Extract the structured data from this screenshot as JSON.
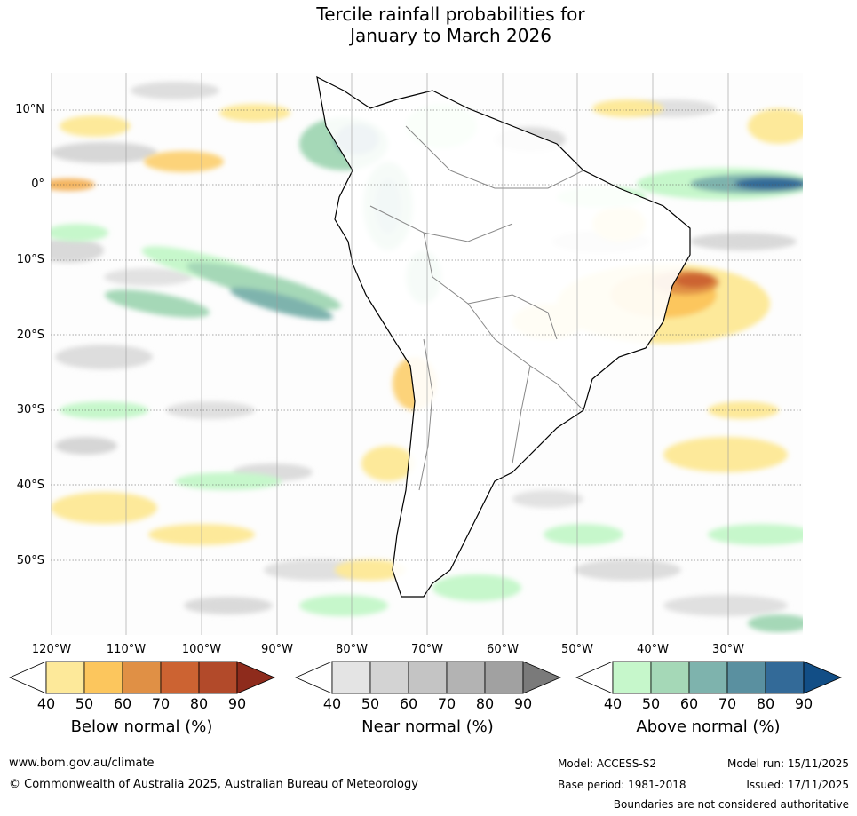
{
  "title_line1": "Tercile rainfall probabilities for",
  "title_line2": "January to March 2026",
  "lat_labels": [
    "10°N",
    "0°",
    "10°S",
    "20°S",
    "30°S",
    "40°S",
    "50°S"
  ],
  "lon_labels": [
    "120°W",
    "110°W",
    "100°W",
    "90°W",
    "80°W",
    "70°W",
    "60°W",
    "50°W",
    "40°W",
    "30°W"
  ],
  "colorbars": [
    {
      "name": "below",
      "title": "Below normal (%)",
      "ticks": [
        "40",
        "50",
        "60",
        "70",
        "80",
        "90"
      ],
      "colors": [
        "#ffffff",
        "#fde99a",
        "#fcc65d",
        "#e09045",
        "#cc6332",
        "#b24a2a",
        "#8e2b1c"
      ]
    },
    {
      "name": "near",
      "title": "Near normal (%)",
      "ticks": [
        "40",
        "50",
        "60",
        "70",
        "80",
        "90"
      ],
      "colors": [
        "#ffffff",
        "#e4e4e4",
        "#d3d3d3",
        "#c4c4c4",
        "#b3b3b3",
        "#a1a1a1",
        "#7a7a7a"
      ]
    },
    {
      "name": "above",
      "title": "Above normal (%)",
      "ticks": [
        "40",
        "50",
        "60",
        "70",
        "80",
        "90"
      ],
      "colors": [
        "#ffffff",
        "#c6f7cb",
        "#a5d8b7",
        "#7eb3ad",
        "#5a90a0",
        "#336a98",
        "#124e86"
      ]
    }
  ],
  "footer": {
    "url": "www.bom.gov.au/climate",
    "copyright": "© Commonwealth of Australia 2025, Australian Bureau of Meteorology",
    "model": "Model: ACCESS-S2",
    "base_period": "Base period: 1981-2018",
    "model_run": "Model run: 15/11/2025",
    "issued": "Issued: 17/11/2025",
    "disclaimer": "Boundaries are not considered authoritative"
  }
}
